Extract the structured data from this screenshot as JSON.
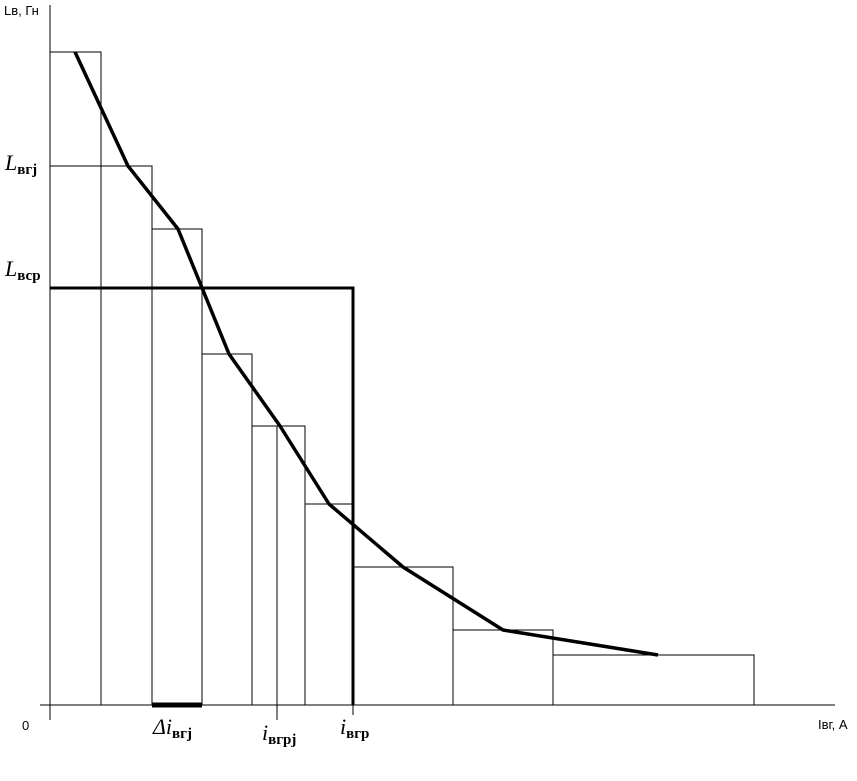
{
  "axes": {
    "y_label": "Lв, Гн",
    "x_label": "Iвг, А",
    "origin": "0"
  },
  "labels": [
    {
      "symbol": "L",
      "subscript": "вгj"
    },
    {
      "symbol": "L",
      "subscript": "вср"
    },
    {
      "symbol": "Δi",
      "subscript": "вгj"
    },
    {
      "symbol": "i",
      "subscript": "вгрj"
    },
    {
      "symbol": "i",
      "subscript": "вгр"
    }
  ]
}
